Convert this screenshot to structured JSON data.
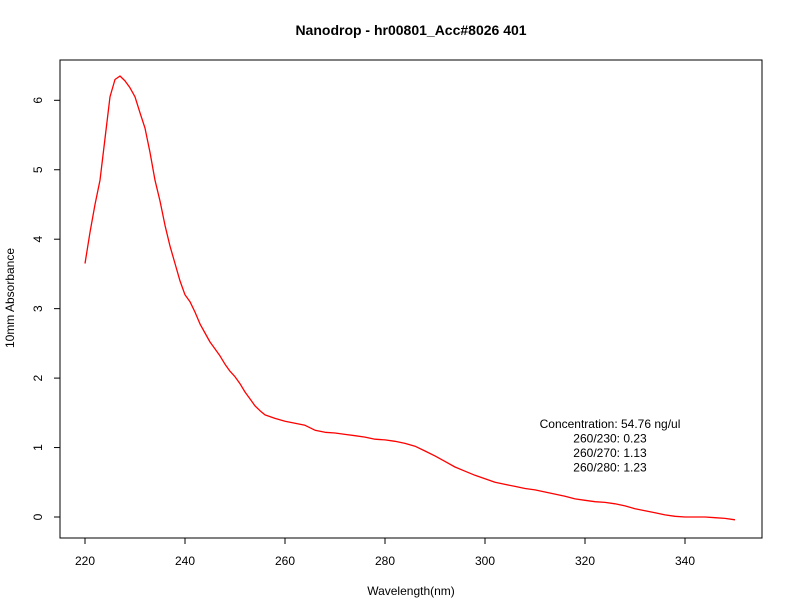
{
  "chart_data": {
    "type": "line",
    "title": "Nanodrop - hr00801_Acc#8026 401",
    "xlabel": "Wavelength(nm)",
    "ylabel": "10mm Absorbance",
    "xlim": [
      220,
      350
    ],
    "ylim": [
      0,
      6.35
    ],
    "xticks": [
      220,
      240,
      260,
      280,
      300,
      320,
      340
    ],
    "yticks": [
      0,
      1,
      2,
      3,
      4,
      5,
      6
    ],
    "grid": false,
    "series": [
      {
        "color": "#ff0000",
        "x": [
          220,
          221,
          222,
          223,
          224,
          225,
          226,
          227,
          228,
          229,
          230,
          231,
          232,
          233,
          234,
          235,
          236,
          237,
          238,
          239,
          240,
          241,
          242,
          243,
          244,
          245,
          246,
          247,
          248,
          249,
          250,
          251,
          252,
          253,
          254,
          255,
          256,
          258,
          260,
          262,
          264,
          266,
          268,
          270,
          272,
          274,
          276,
          278,
          280,
          282,
          284,
          286,
          288,
          290,
          292,
          294,
          296,
          298,
          300,
          302,
          304,
          306,
          308,
          310,
          312,
          314,
          316,
          318,
          320,
          322,
          324,
          326,
          328,
          330,
          332,
          334,
          336,
          338,
          340,
          342,
          344,
          346,
          348,
          350
        ],
        "y": [
          3.65,
          4.1,
          4.5,
          4.85,
          5.45,
          6.05,
          6.3,
          6.35,
          6.28,
          6.18,
          6.05,
          5.82,
          5.6,
          5.25,
          4.85,
          4.55,
          4.2,
          3.9,
          3.65,
          3.4,
          3.2,
          3.1,
          2.95,
          2.78,
          2.65,
          2.52,
          2.42,
          2.32,
          2.2,
          2.1,
          2.02,
          1.92,
          1.8,
          1.7,
          1.6,
          1.53,
          1.47,
          1.42,
          1.38,
          1.35,
          1.32,
          1.25,
          1.22,
          1.21,
          1.19,
          1.17,
          1.15,
          1.12,
          1.11,
          1.09,
          1.06,
          1.02,
          0.95,
          0.88,
          0.8,
          0.72,
          0.66,
          0.6,
          0.55,
          0.5,
          0.47,
          0.44,
          0.41,
          0.39,
          0.36,
          0.33,
          0.3,
          0.26,
          0.24,
          0.22,
          0.21,
          0.19,
          0.16,
          0.12,
          0.09,
          0.06,
          0.03,
          0.01,
          0.0,
          0.0,
          0.0,
          -0.01,
          -0.02,
          -0.04
        ]
      }
    ],
    "annotations": [
      "Concentration: 54.76 ng/ul",
      "260/230: 0.23",
      "260/270: 1.13",
      "260/280: 1.23"
    ]
  }
}
